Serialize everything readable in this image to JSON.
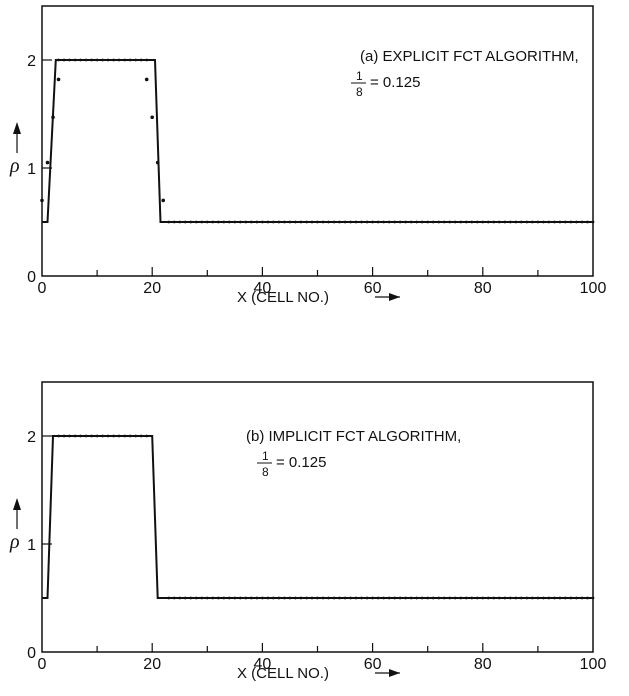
{
  "chart_data": [
    {
      "type": "line",
      "panel": "a",
      "annotation_line1": "(a) EXPLICIT FCT ALGORITHM,",
      "annotation_frac_num": "1",
      "annotation_frac_den": "8",
      "annotation_rest": "= 0.125",
      "xlabel": "X (CELL NO.)",
      "ylabel": "ρ",
      "xlim": [
        0,
        100
      ],
      "ylim": [
        0,
        2.5
      ],
      "x_ticks": [
        "0",
        "20",
        "40",
        "60",
        "80",
        "100"
      ],
      "y_ticks": [
        "0",
        "1",
        "2"
      ],
      "grid": false,
      "series": [
        {
          "style": "solid-line",
          "x": [
            0,
            1,
            2.5,
            20.5,
            21.5,
            100
          ],
          "y": [
            0.5,
            0.5,
            2,
            2,
            0.5,
            0.5
          ]
        },
        {
          "style": "dots",
          "x": [
            0,
            1,
            2,
            3,
            19,
            20,
            21,
            22
          ],
          "y": [
            0.7,
            1.05,
            1.47,
            1.82,
            1.82,
            1.47,
            1.05,
            0.7
          ]
        }
      ]
    },
    {
      "type": "line",
      "panel": "b",
      "annotation_line1": "(b) IMPLICIT FCT ALGORITHM,",
      "annotation_frac_num": "1",
      "annotation_frac_den": "8",
      "annotation_rest": "= 0.125",
      "xlabel": "X (CELL NO.)",
      "ylabel": "ρ",
      "xlim": [
        0,
        100
      ],
      "ylim": [
        0,
        2.5
      ],
      "x_ticks": [
        "0",
        "20",
        "40",
        "60",
        "80",
        "100"
      ],
      "y_ticks": [
        "0",
        "1",
        "2"
      ],
      "grid": false,
      "series": [
        {
          "style": "solid-line",
          "x": [
            0,
            1,
            2,
            20,
            21,
            100
          ],
          "y": [
            0.5,
            0.5,
            2,
            2,
            0.5,
            0.5
          ]
        }
      ]
    }
  ]
}
